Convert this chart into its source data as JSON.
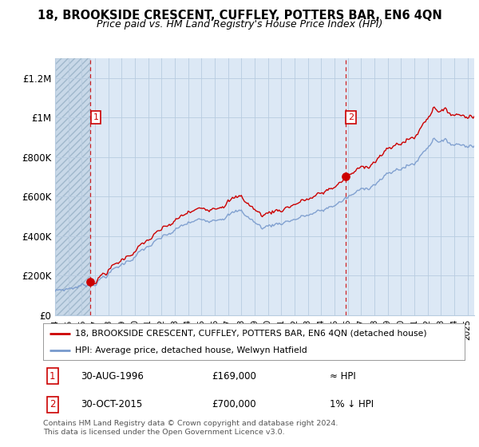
{
  "title": "18, BROOKSIDE CRESCENT, CUFFLEY, POTTERS BAR, EN6 4QN",
  "subtitle": "Price paid vs. HM Land Registry's House Price Index (HPI)",
  "xmin": 1994.0,
  "xmax": 2025.5,
  "ymin": 0,
  "ymax": 1300000,
  "yticks": [
    0,
    200000,
    400000,
    600000,
    800000,
    1000000,
    1200000
  ],
  "ytick_labels": [
    "£0",
    "£200K",
    "£400K",
    "£600K",
    "£800K",
    "£1M",
    "£1.2M"
  ],
  "sale1_x": 1996.667,
  "sale1_y": 169000,
  "sale2_x": 2015.833,
  "sale2_y": 700000,
  "legend_line1": "18, BROOKSIDE CRESCENT, CUFFLEY, POTTERS BAR, EN6 4QN (detached house)",
  "legend_line2": "HPI: Average price, detached house, Welwyn Hatfield",
  "table_row1_num": "1",
  "table_row1_date": "30-AUG-1996",
  "table_row1_price": "£169,000",
  "table_row1_hpi": "≈ HPI",
  "table_row2_num": "2",
  "table_row2_date": "30-OCT-2015",
  "table_row2_price": "£700,000",
  "table_row2_hpi": "1% ↓ HPI",
  "footer": "Contains HM Land Registry data © Crown copyright and database right 2024.\nThis data is licensed under the Open Government Licence v3.0.",
  "line_color": "#cc0000",
  "hpi_color": "#7799cc",
  "plot_bg": "#dce8f5",
  "hatched_bg": "#c8d8e8",
  "grid_color": "#b8cce0",
  "fig_bg": "#ffffff"
}
